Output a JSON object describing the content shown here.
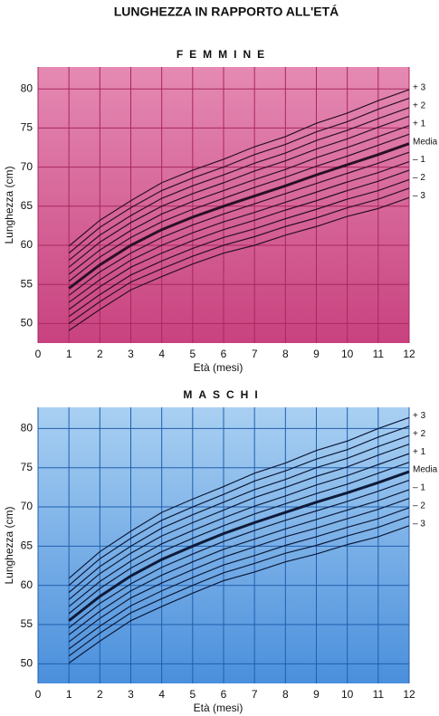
{
  "title": "LUNGHEZZA IN RAPPORTO ALL'ETÁ",
  "chart_data": [
    {
      "type": "line",
      "title": "FEMMINE",
      "xlabel": "Età (mesi)",
      "ylabel": "Lunghezza (cm)",
      "x": [
        1,
        2,
        3,
        4,
        5,
        6,
        7,
        8,
        9,
        10,
        11,
        12
      ],
      "xlim": [
        0,
        12
      ],
      "xticks": [
        0,
        1,
        2,
        3,
        4,
        5,
        6,
        7,
        8,
        9,
        10,
        11,
        12
      ],
      "ylim": [
        47.5,
        82.8
      ],
      "yticks": [
        50,
        55,
        60,
        65,
        70,
        75,
        80
      ],
      "grid": true,
      "background": [
        "#e58ab3",
        "#c8427f"
      ],
      "grid_color": "#a8275f",
      "line_color": "#2a1024",
      "series": [
        {
          "name": "+ 3",
          "values": [
            59.9,
            63.2,
            65.7,
            68,
            69.6,
            71,
            72.6,
            73.9,
            75.6,
            76.9,
            78.5,
            79.9
          ]
        },
        {
          "values": [
            59,
            62.3,
            64.8,
            67,
            68.6,
            70,
            71.6,
            72.9,
            74.5,
            75.8,
            77.4,
            78.8
          ]
        },
        {
          "name": "+ 2",
          "values": [
            58.1,
            61.3,
            63.8,
            66,
            67.6,
            69,
            70.5,
            71.8,
            73.4,
            74.7,
            76.2,
            77.6
          ]
        },
        {
          "values": [
            57.2,
            60.4,
            62.9,
            65,
            66.6,
            68,
            69.5,
            70.8,
            72.3,
            73.6,
            75.1,
            76.5
          ]
        },
        {
          "name": "+ 1",
          "values": [
            56.3,
            59.4,
            61.9,
            64,
            65.6,
            67,
            68.4,
            69.7,
            71.2,
            72.5,
            73.9,
            75.3
          ]
        },
        {
          "values": [
            55.4,
            58.5,
            61,
            63,
            64.6,
            66,
            67.4,
            68.7,
            70.1,
            71.4,
            72.8,
            74.2
          ]
        },
        {
          "name": "Media",
          "width": 3,
          "values": [
            54.5,
            57.5,
            60,
            62,
            63.6,
            65,
            66.3,
            67.6,
            69,
            70.3,
            71.6,
            73
          ]
        },
        {
          "values": [
            53.6,
            56.6,
            59,
            61,
            62.6,
            64,
            65.3,
            66.6,
            67.9,
            69.2,
            70.5,
            71.9
          ]
        },
        {
          "name": "– 1",
          "values": [
            52.7,
            55.6,
            58.1,
            60,
            61.6,
            63,
            64.2,
            65.5,
            66.8,
            68.1,
            69.3,
            70.7
          ]
        },
        {
          "values": [
            51.8,
            54.7,
            57.2,
            59,
            60.6,
            62,
            63.2,
            64.5,
            65.7,
            67,
            68.2,
            69.6
          ]
        },
        {
          "name": "– 2",
          "values": [
            50.9,
            53.7,
            56.2,
            58,
            59.6,
            61,
            62.1,
            63.4,
            64.6,
            65.9,
            67,
            68.4
          ]
        },
        {
          "values": [
            50,
            52.8,
            55.3,
            57,
            58.6,
            60,
            61.1,
            62.4,
            63.5,
            64.8,
            65.9,
            67.3
          ]
        },
        {
          "name": "– 3",
          "values": [
            49.1,
            51.8,
            54.3,
            56,
            57.6,
            59,
            60,
            61.3,
            62.4,
            63.7,
            64.7,
            66.1
          ]
        }
      ]
    },
    {
      "type": "line",
      "title": "MASCHI",
      "xlabel": "Età (mesi)",
      "ylabel": "Lunghezza (cm)",
      "x": [
        1,
        2,
        3,
        4,
        5,
        6,
        7,
        8,
        9,
        10,
        11,
        12
      ],
      "xlim": [
        0,
        12
      ],
      "xticks": [
        0,
        1,
        2,
        3,
        4,
        5,
        6,
        7,
        8,
        9,
        10,
        11,
        12
      ],
      "ylim": [
        47.5,
        82.7
      ],
      "yticks": [
        50,
        55,
        60,
        65,
        70,
        75,
        80
      ],
      "grid": true,
      "background": [
        "#a9d0f2",
        "#4a8fdc"
      ],
      "grid_color": "#1f5fae",
      "line_color": "#0e1a38",
      "series": [
        {
          "name": "+ 3",
          "values": [
            60.9,
            64.3,
            66.9,
            69.3,
            71,
            72.6,
            74.3,
            75.6,
            77.2,
            78.4,
            80,
            81.4
          ]
        },
        {
          "values": [
            60,
            63.4,
            66,
            68.3,
            70,
            71.6,
            73.3,
            74.6,
            76.1,
            77.3,
            78.9,
            80.3
          ]
        },
        {
          "name": "+ 2",
          "values": [
            59.1,
            62.4,
            65,
            67.3,
            69,
            70.6,
            72.2,
            73.5,
            75,
            76.2,
            77.7,
            79.1
          ]
        },
        {
          "values": [
            58.2,
            61.5,
            64.1,
            66.3,
            68,
            69.6,
            71.2,
            72.5,
            73.9,
            75.1,
            76.6,
            78
          ]
        },
        {
          "name": "+ 1",
          "values": [
            57.3,
            60.5,
            63.1,
            65.3,
            67,
            68.6,
            70.1,
            71.4,
            72.8,
            74,
            75.4,
            76.8
          ]
        },
        {
          "values": [
            56.4,
            59.6,
            62.2,
            64.3,
            66,
            67.6,
            69.1,
            70.4,
            71.7,
            72.9,
            74.3,
            75.7
          ]
        },
        {
          "name": "Media",
          "width": 3,
          "values": [
            55.5,
            58.6,
            61.2,
            63.3,
            65,
            66.6,
            68,
            69.3,
            70.6,
            71.8,
            73.1,
            74.5
          ]
        },
        {
          "values": [
            54.6,
            57.7,
            60.2,
            62.3,
            64,
            65.6,
            67,
            68.3,
            69.5,
            70.7,
            72,
            73.4
          ]
        },
        {
          "name": "– 1",
          "values": [
            53.7,
            56.7,
            59.3,
            61.3,
            63,
            64.6,
            65.9,
            67.2,
            68.4,
            69.6,
            70.8,
            72.2
          ]
        },
        {
          "values": [
            52.8,
            55.8,
            58.4,
            60.3,
            62,
            63.6,
            64.9,
            66.2,
            67.3,
            68.5,
            69.7,
            71.1
          ]
        },
        {
          "name": "– 2",
          "values": [
            51.9,
            54.8,
            57.4,
            59.3,
            61,
            62.6,
            63.8,
            65.1,
            66.2,
            67.4,
            68.5,
            69.9
          ]
        },
        {
          "values": [
            51,
            53.9,
            56.5,
            58.3,
            60,
            61.6,
            62.8,
            64.1,
            65.1,
            66.3,
            67.4,
            68.8
          ]
        },
        {
          "name": "– 3",
          "values": [
            50.1,
            52.9,
            55.5,
            57.3,
            59,
            60.6,
            61.7,
            63,
            64,
            65.2,
            66.2,
            67.6
          ]
        }
      ]
    }
  ]
}
